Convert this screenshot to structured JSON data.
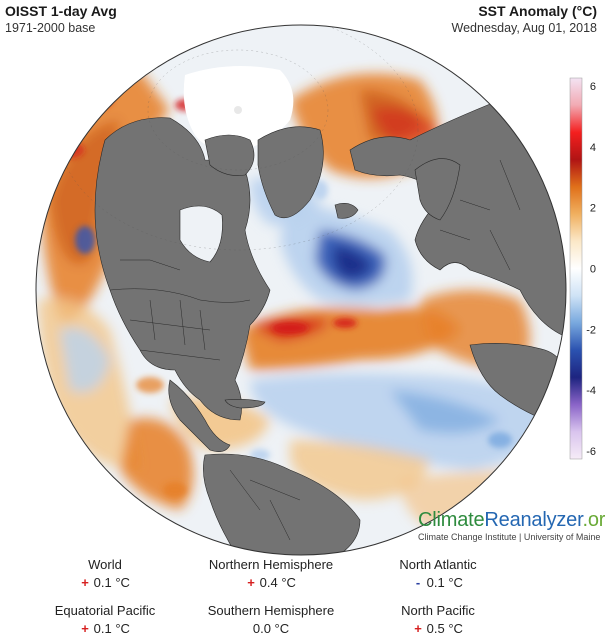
{
  "header": {
    "left_title": "OISST 1-day Avg",
    "left_subtitle": "1971-2000 base",
    "right_title": "SST Anomaly (°C)",
    "right_date": "Wednesday, Aug 01, 2018"
  },
  "colorbar": {
    "ticks": [
      "6",
      "4",
      "2",
      "0",
      "-2",
      "-4",
      "-6"
    ],
    "stops": [
      "#f3e3f3",
      "#f2aab3",
      "#f41f1f",
      "#b01414",
      "#e0701a",
      "#f0b060",
      "#fbe8c8",
      "#ffffff",
      "#cfe3f6",
      "#78a8de",
      "#2b52b0",
      "#1d2480",
      "#8a64c8",
      "#d9c4ee",
      "#f6ecf7"
    ]
  },
  "map": {
    "land_color": "#737373",
    "ice_color": "#ffffff",
    "colors": {
      "strong_warm": "#d41b1b",
      "warm": "#e67e25",
      "mild_warm": "#f3c58a",
      "neutral": "#fbf6ef",
      "cool": "#b9d2ee",
      "cold": "#2f56b5",
      "very_cold": "#1c2a86"
    }
  },
  "brand": {
    "name_part1": "Climate",
    "name_part2": "Reanalyzer",
    "name_part3": ".org",
    "subtitle": "Climate Change Institute | University of Maine",
    "color1": "#2e8b3e",
    "color2": "#2467b2",
    "color3": "#6aaa37"
  },
  "stats": [
    {
      "label": "World",
      "sign": "+",
      "value": "0.1 °C"
    },
    {
      "label": "Northern Hemisphere",
      "sign": "+",
      "value": "0.4 °C"
    },
    {
      "label": "North Atlantic",
      "sign": "-",
      "value": "0.1 °C"
    },
    {
      "label": "Equatorial Pacific",
      "sign": "+",
      "value": "0.1 °C"
    },
    {
      "label": "Southern Hemisphere",
      "sign": "",
      "value": "0.0 °C"
    },
    {
      "label": "North Pacific",
      "sign": "+",
      "value": "0.5 °C"
    }
  ]
}
